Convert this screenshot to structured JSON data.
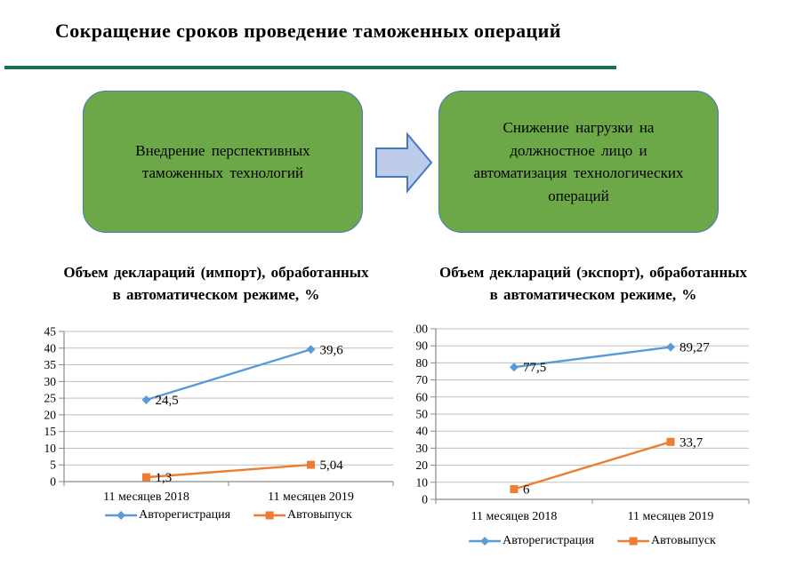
{
  "slide_title": "Сокращение сроков проведение таможенных операций",
  "divider_color": "#17705A",
  "flow": {
    "input_box": "Внедрение перспективных\nтаможенных технологий",
    "output_box": "Снижение нагрузки на\nдолжностное лицо и\nавтоматизация технологических\nопераций",
    "arrow_icon": "right-block-arrow",
    "colors": {
      "box_fill": "#6CA848",
      "box_border": "#4777C0",
      "arrow_fill": "#BDCDE9",
      "arrow_border": "#4777C0"
    }
  },
  "chart_data": [
    {
      "id": "import",
      "type": "line",
      "title": "Объем деклараций (импорт), обработанных\nв автоматическом  режиме, %",
      "categories": [
        "11 месяцев 2018",
        "11 месяцев 2019"
      ],
      "series": [
        {
          "name": "Авторегистрация",
          "values": [
            24.5,
            39.6
          ],
          "labels": [
            "24,5",
            "39,6"
          ],
          "color": "#5B9BD5",
          "marker": "diamond"
        },
        {
          "name": "Автовыпуск",
          "values": [
            1.3,
            5.04
          ],
          "labels": [
            "1,3",
            "5,04"
          ],
          "color": "#ED7D31",
          "marker": "square"
        }
      ],
      "xlabel": "",
      "ylabel": "",
      "ylim": [
        0,
        45
      ],
      "ytick_step": 5,
      "grid": true,
      "legend_position": "bottom"
    },
    {
      "id": "export",
      "type": "line",
      "title": "Объем деклараций (экспорт), обработанных\nв автоматическом  режиме, %",
      "categories": [
        "11 месяцев 2018",
        "11 месяцев 2019"
      ],
      "series": [
        {
          "name": "Авторегистрация",
          "values": [
            77.5,
            89.27
          ],
          "labels": [
            "77,5",
            "89,27"
          ],
          "color": "#5B9BD5",
          "marker": "diamond"
        },
        {
          "name": "Автовыпуск",
          "values": [
            6,
            33.7
          ],
          "labels": [
            "6",
            "33,7"
          ],
          "color": "#ED7D31",
          "marker": "square"
        }
      ],
      "xlabel": "",
      "ylabel": "",
      "ylim": [
        0,
        100
      ],
      "ytick_step": 10,
      "grid": true,
      "legend_position": "bottom"
    }
  ],
  "chart_colors": {
    "gridline": "#BFBFBF",
    "axis": "#898989"
  }
}
